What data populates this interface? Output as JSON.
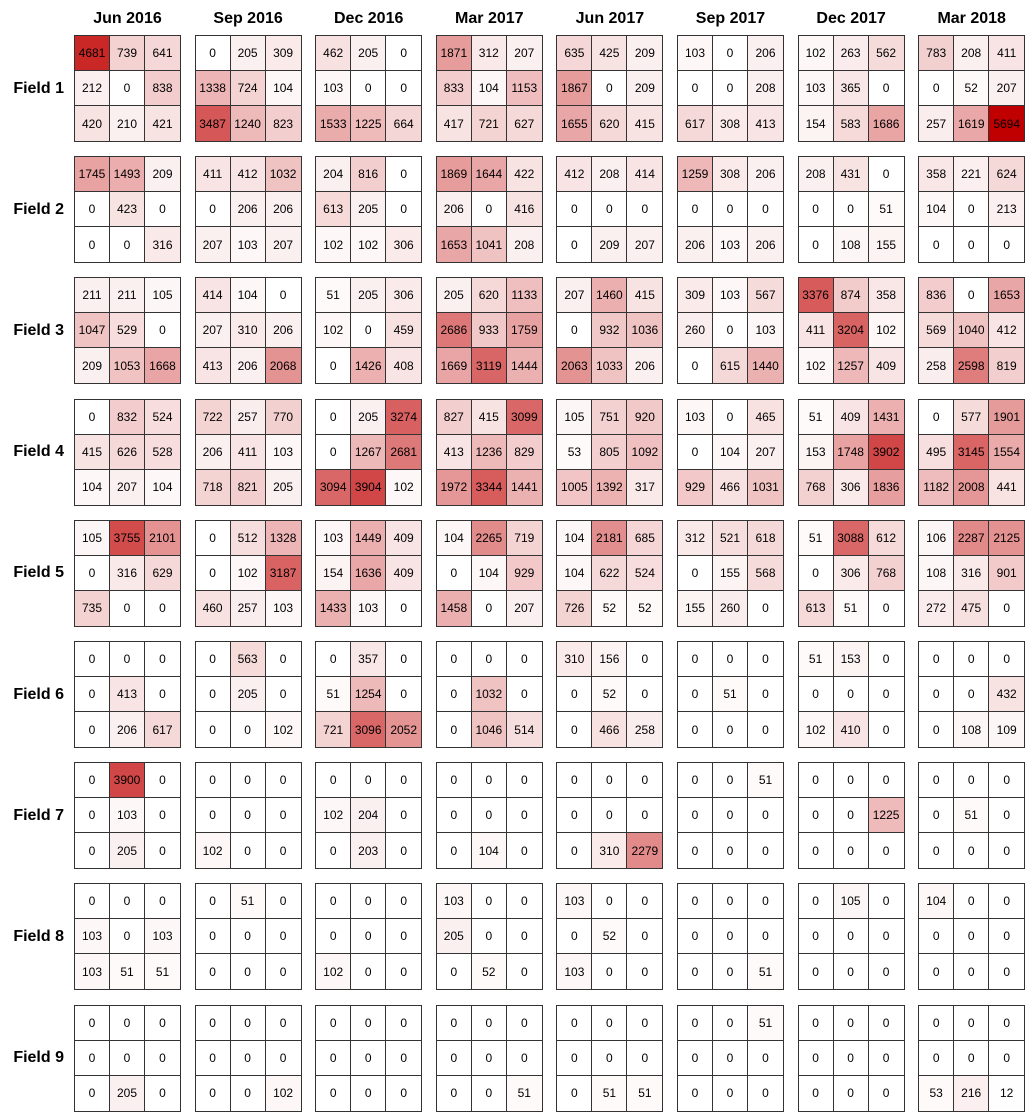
{
  "chart_data": {
    "type": "heatmap",
    "title": "",
    "columns": [
      "Jun 2016",
      "Sep 2016",
      "Dec 2016",
      "Mar 2017",
      "Jun 2017",
      "Sep 2017",
      "Dec 2017",
      "Mar 2018"
    ],
    "rows": [
      "Field 1",
      "Field 2",
      "Field 3",
      "Field 4",
      "Field 5",
      "Field 6",
      "Field 7",
      "Field 8",
      "Field 9"
    ],
    "color_scale": {
      "low": "#ffffff",
      "high": "#c00000",
      "min": 0,
      "max": 5694
    },
    "panels": [
      [
        [
          [
            4681,
            739,
            641
          ],
          [
            212,
            0,
            838
          ],
          [
            420,
            210,
            421
          ]
        ],
        [
          [
            0,
            205,
            309
          ],
          [
            1338,
            724,
            104
          ],
          [
            3487,
            1240,
            823
          ]
        ],
        [
          [
            462,
            205,
            0
          ],
          [
            103,
            0,
            0
          ],
          [
            1533,
            1225,
            664
          ]
        ],
        [
          [
            1871,
            312,
            207
          ],
          [
            833,
            104,
            1153
          ],
          [
            417,
            721,
            627
          ]
        ],
        [
          [
            635,
            425,
            209
          ],
          [
            1867,
            0,
            209
          ],
          [
            1655,
            620,
            415
          ]
        ],
        [
          [
            103,
            0,
            206
          ],
          [
            0,
            0,
            208
          ],
          [
            617,
            308,
            413
          ]
        ],
        [
          [
            102,
            263,
            562
          ],
          [
            103,
            365,
            0
          ],
          [
            154,
            583,
            1686
          ]
        ],
        [
          [
            783,
            208,
            411
          ],
          [
            0,
            52,
            207
          ],
          [
            257,
            1619,
            5694
          ]
        ]
      ],
      [
        [
          [
            1745,
            1493,
            209
          ],
          [
            0,
            423,
            0
          ],
          [
            0,
            0,
            316
          ]
        ],
        [
          [
            411,
            412,
            1032
          ],
          [
            0,
            206,
            206
          ],
          [
            207,
            103,
            207
          ]
        ],
        [
          [
            204,
            816,
            0
          ],
          [
            613,
            205,
            0
          ],
          [
            102,
            102,
            306
          ]
        ],
        [
          [
            1869,
            1644,
            422
          ],
          [
            206,
            0,
            416
          ],
          [
            1653,
            1041,
            208
          ]
        ],
        [
          [
            412,
            208,
            414
          ],
          [
            0,
            0,
            0
          ],
          [
            0,
            209,
            207
          ]
        ],
        [
          [
            1259,
            308,
            206
          ],
          [
            0,
            0,
            0
          ],
          [
            206,
            103,
            206
          ]
        ],
        [
          [
            208,
            431,
            0
          ],
          [
            0,
            0,
            51
          ],
          [
            0,
            108,
            155
          ]
        ],
        [
          [
            358,
            221,
            624
          ],
          [
            104,
            0,
            213
          ],
          [
            0,
            0,
            0
          ]
        ]
      ],
      [
        [
          [
            211,
            211,
            105
          ],
          [
            1047,
            529,
            0
          ],
          [
            209,
            1053,
            1668
          ]
        ],
        [
          [
            414,
            104,
            0
          ],
          [
            207,
            310,
            206
          ],
          [
            413,
            206,
            2068
          ]
        ],
        [
          [
            51,
            205,
            306
          ],
          [
            102,
            0,
            459
          ],
          [
            0,
            1426,
            408
          ]
        ],
        [
          [
            205,
            620,
            1133
          ],
          [
            2686,
            933,
            1759
          ],
          [
            1669,
            3119,
            1444
          ]
        ],
        [
          [
            207,
            1460,
            415
          ],
          [
            0,
            932,
            1036
          ],
          [
            2063,
            1033,
            206
          ]
        ],
        [
          [
            309,
            103,
            567
          ],
          [
            260,
            0,
            103
          ],
          [
            0,
            615,
            1440
          ]
        ],
        [
          [
            3376,
            874,
            358
          ],
          [
            411,
            3204,
            102
          ],
          [
            102,
            1257,
            409
          ]
        ],
        [
          [
            836,
            0,
            1653
          ],
          [
            569,
            1040,
            412
          ],
          [
            258,
            2598,
            819
          ]
        ]
      ],
      [
        [
          [
            0,
            832,
            524
          ],
          [
            415,
            626,
            528
          ],
          [
            104,
            207,
            104
          ]
        ],
        [
          [
            722,
            257,
            770
          ],
          [
            206,
            411,
            103
          ],
          [
            718,
            821,
            205
          ]
        ],
        [
          [
            0,
            205,
            3274
          ],
          [
            0,
            1267,
            2681
          ],
          [
            3094,
            3904,
            102
          ]
        ],
        [
          [
            827,
            415,
            3099
          ],
          [
            413,
            1236,
            829
          ],
          [
            1972,
            3344,
            1441
          ]
        ],
        [
          [
            105,
            751,
            920
          ],
          [
            53,
            805,
            1092
          ],
          [
            1005,
            1392,
            317
          ]
        ],
        [
          [
            103,
            0,
            465
          ],
          [
            0,
            104,
            207
          ],
          [
            929,
            466,
            1031
          ]
        ],
        [
          [
            51,
            409,
            1431
          ],
          [
            153,
            1748,
            3902
          ],
          [
            768,
            306,
            1836
          ]
        ],
        [
          [
            0,
            577,
            1901
          ],
          [
            495,
            3145,
            1554
          ],
          [
            1182,
            2008,
            441
          ]
        ]
      ],
      [
        [
          [
            105,
            3755,
            2101
          ],
          [
            0,
            316,
            629
          ],
          [
            735,
            0,
            0
          ]
        ],
        [
          [
            0,
            512,
            1328
          ],
          [
            0,
            102,
            3187
          ],
          [
            460,
            257,
            103
          ]
        ],
        [
          [
            103,
            1449,
            409
          ],
          [
            154,
            1636,
            409
          ],
          [
            1433,
            103,
            0
          ]
        ],
        [
          [
            104,
            2265,
            719
          ],
          [
            0,
            104,
            929
          ],
          [
            1458,
            0,
            207
          ]
        ],
        [
          [
            104,
            2181,
            685
          ],
          [
            104,
            622,
            524
          ],
          [
            726,
            52,
            52
          ]
        ],
        [
          [
            312,
            521,
            618
          ],
          [
            0,
            155,
            568
          ],
          [
            155,
            260,
            0
          ]
        ],
        [
          [
            51,
            3088,
            612
          ],
          [
            0,
            306,
            768
          ],
          [
            613,
            51,
            0
          ]
        ],
        [
          [
            106,
            2287,
            2125
          ],
          [
            108,
            316,
            901
          ],
          [
            272,
            475,
            0
          ]
        ]
      ],
      [
        [
          [
            0,
            0,
            0
          ],
          [
            0,
            413,
            0
          ],
          [
            0,
            206,
            617
          ]
        ],
        [
          [
            0,
            563,
            0
          ],
          [
            0,
            205,
            0
          ],
          [
            0,
            0,
            102
          ]
        ],
        [
          [
            0,
            357,
            0
          ],
          [
            51,
            1254,
            0
          ],
          [
            721,
            3096,
            2052
          ]
        ],
        [
          [
            0,
            0,
            0
          ],
          [
            0,
            1032,
            0
          ],
          [
            0,
            1046,
            514
          ]
        ],
        [
          [
            310,
            156,
            0
          ],
          [
            0,
            52,
            0
          ],
          [
            0,
            466,
            258
          ]
        ],
        [
          [
            0,
            0,
            0
          ],
          [
            0,
            51,
            0
          ],
          [
            0,
            0,
            0
          ]
        ],
        [
          [
            51,
            153,
            0
          ],
          [
            0,
            0,
            0
          ],
          [
            102,
            410,
            0
          ]
        ],
        [
          [
            0,
            0,
            0
          ],
          [
            0,
            0,
            432
          ],
          [
            0,
            108,
            109
          ]
        ]
      ],
      [
        [
          [
            0,
            3900,
            0
          ],
          [
            0,
            103,
            0
          ],
          [
            0,
            205,
            0
          ]
        ],
        [
          [
            0,
            0,
            0
          ],
          [
            0,
            0,
            0
          ],
          [
            102,
            0,
            0
          ]
        ],
        [
          [
            0,
            0,
            0
          ],
          [
            102,
            204,
            0
          ],
          [
            0,
            203,
            0
          ]
        ],
        [
          [
            0,
            0,
            0
          ],
          [
            0,
            0,
            0
          ],
          [
            0,
            104,
            0
          ]
        ],
        [
          [
            0,
            0,
            0
          ],
          [
            0,
            0,
            0
          ],
          [
            0,
            310,
            2279
          ]
        ],
        [
          [
            0,
            0,
            51
          ],
          [
            0,
            0,
            0
          ],
          [
            0,
            0,
            0
          ]
        ],
        [
          [
            0,
            0,
            0
          ],
          [
            0,
            0,
            1225
          ],
          [
            0,
            0,
            0
          ]
        ],
        [
          [
            0,
            0,
            0
          ],
          [
            0,
            51,
            0
          ],
          [
            0,
            0,
            0
          ]
        ]
      ],
      [
        [
          [
            0,
            0,
            0
          ],
          [
            103,
            0,
            103
          ],
          [
            103,
            51,
            51
          ]
        ],
        [
          [
            0,
            51,
            0
          ],
          [
            0,
            0,
            0
          ],
          [
            0,
            0,
            0
          ]
        ],
        [
          [
            0,
            0,
            0
          ],
          [
            0,
            0,
            0
          ],
          [
            102,
            0,
            0
          ]
        ],
        [
          [
            103,
            0,
            0
          ],
          [
            205,
            0,
            0
          ],
          [
            0,
            52,
            0
          ]
        ],
        [
          [
            103,
            0,
            0
          ],
          [
            0,
            52,
            0
          ],
          [
            103,
            0,
            0
          ]
        ],
        [
          [
            0,
            0,
            0
          ],
          [
            0,
            0,
            0
          ],
          [
            0,
            0,
            51
          ]
        ],
        [
          [
            0,
            105,
            0
          ],
          [
            0,
            0,
            0
          ],
          [
            0,
            0,
            0
          ]
        ],
        [
          [
            104,
            0,
            0
          ],
          [
            0,
            0,
            0
          ],
          [
            0,
            0,
            0
          ]
        ]
      ],
      [
        [
          [
            0,
            0,
            0
          ],
          [
            0,
            0,
            0
          ],
          [
            0,
            205,
            0
          ]
        ],
        [
          [
            0,
            0,
            0
          ],
          [
            0,
            0,
            0
          ],
          [
            0,
            0,
            102
          ]
        ],
        [
          [
            0,
            0,
            0
          ],
          [
            0,
            0,
            0
          ],
          [
            0,
            0,
            0
          ]
        ],
        [
          [
            0,
            0,
            0
          ],
          [
            0,
            0,
            0
          ],
          [
            0,
            0,
            51
          ]
        ],
        [
          [
            0,
            0,
            0
          ],
          [
            0,
            0,
            0
          ],
          [
            0,
            51,
            51
          ]
        ],
        [
          [
            0,
            0,
            51
          ],
          [
            0,
            0,
            0
          ],
          [
            0,
            0,
            0
          ]
        ],
        [
          [
            0,
            0,
            0
          ],
          [
            0,
            0,
            0
          ],
          [
            0,
            0,
            0
          ]
        ],
        [
          [
            0,
            0,
            0
          ],
          [
            0,
            0,
            0
          ],
          [
            53,
            216,
            12
          ]
        ]
      ]
    ]
  }
}
